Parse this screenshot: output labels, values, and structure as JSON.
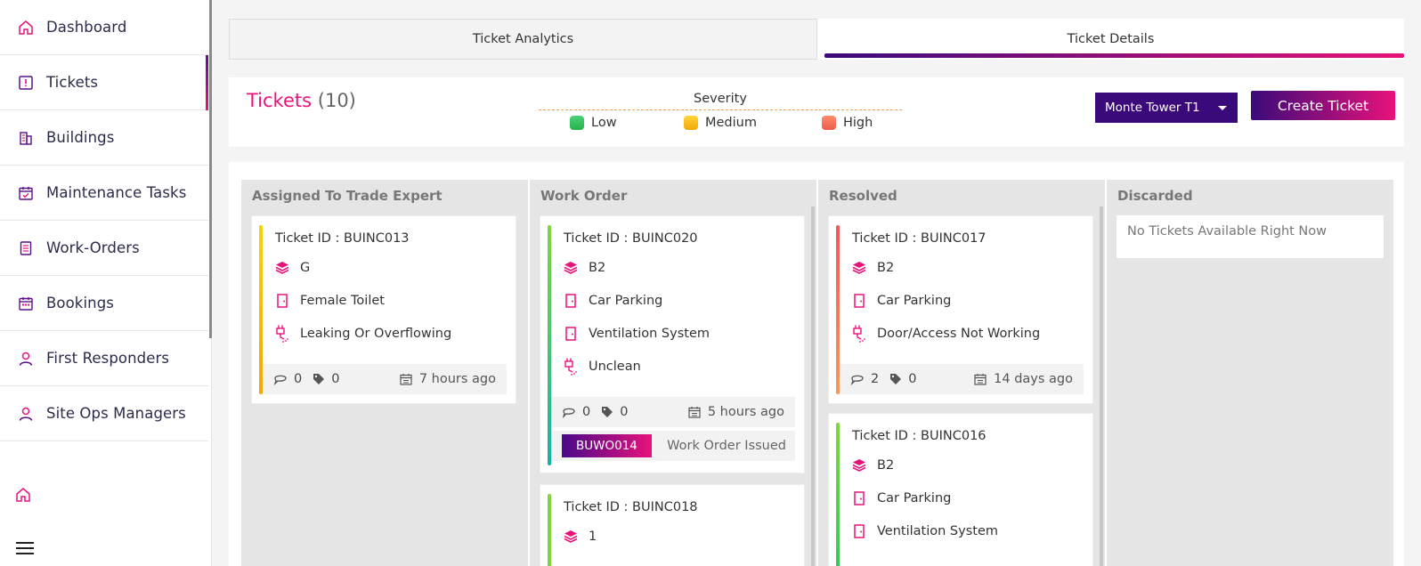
{
  "sidebar": {
    "items": [
      {
        "label": "Dashboard",
        "icon": "home-icon"
      },
      {
        "label": "Tickets",
        "icon": "ticket-icon"
      },
      {
        "label": "Buildings",
        "icon": "building-icon"
      },
      {
        "label": "Maintenance Tasks",
        "icon": "calendar-check-icon"
      },
      {
        "label": "Work-Orders",
        "icon": "document-icon"
      },
      {
        "label": "Bookings",
        "icon": "calendar-icon"
      },
      {
        "label": "First Responders",
        "icon": "user-icon"
      },
      {
        "label": "Site Ops Managers",
        "icon": "user-icon"
      }
    ],
    "active_item": "Tickets"
  },
  "tabs": [
    {
      "label": "Ticket Analytics",
      "active": false
    },
    {
      "label": "Ticket Details",
      "active": true
    }
  ],
  "header": {
    "title": "Tickets",
    "count": "(10)",
    "severity_label": "Severity",
    "severity": [
      {
        "label": "Low",
        "color": "#2ec462"
      },
      {
        "label": "Medium",
        "color": "#f2b705"
      },
      {
        "label": "High",
        "color": "#f26a4f"
      }
    ],
    "location": "Monte Tower T1",
    "create_button": "Create Ticket"
  },
  "columns": [
    {
      "title": "Assigned To Trade Expert",
      "cards": [
        {
          "ticket_id": "Ticket ID : BUINC013",
          "floor": "G",
          "area": "Female Toilet",
          "issue": "Leaking Or Overflowing",
          "comments": "0",
          "tags": "0",
          "time": "7 hours ago",
          "severity_color": "#f2b705"
        }
      ]
    },
    {
      "title": "Work Order",
      "cards": [
        {
          "ticket_id": "Ticket ID : BUINC020",
          "floor": "B2",
          "area": "Car Parking",
          "asset": "Ventilation System",
          "issue": "Unclean",
          "comments": "0",
          "tags": "0",
          "time": "5 hours ago",
          "work_order": "BUWO014",
          "work_order_status": "Work Order Issued",
          "severity_color": "#2ec462"
        },
        {
          "ticket_id": "Ticket ID : BUINC018",
          "floor": "1",
          "severity_color": "#2ec462"
        }
      ]
    },
    {
      "title": "Resolved",
      "cards": [
        {
          "ticket_id": "Ticket ID : BUINC017",
          "floor": "B2",
          "area": "Car Parking",
          "issue": "Door/Access Not Working",
          "comments": "2",
          "tags": "0",
          "time": "14 days ago",
          "severity_color": "#f26a4f"
        },
        {
          "ticket_id": "Ticket ID : BUINC016",
          "floor": "B2",
          "area": "Car Parking",
          "asset": "Ventilation System",
          "severity_color": "#2ec462"
        }
      ]
    },
    {
      "title": "Discarded",
      "empty_message": "No Tickets Available Right Now"
    }
  ]
}
